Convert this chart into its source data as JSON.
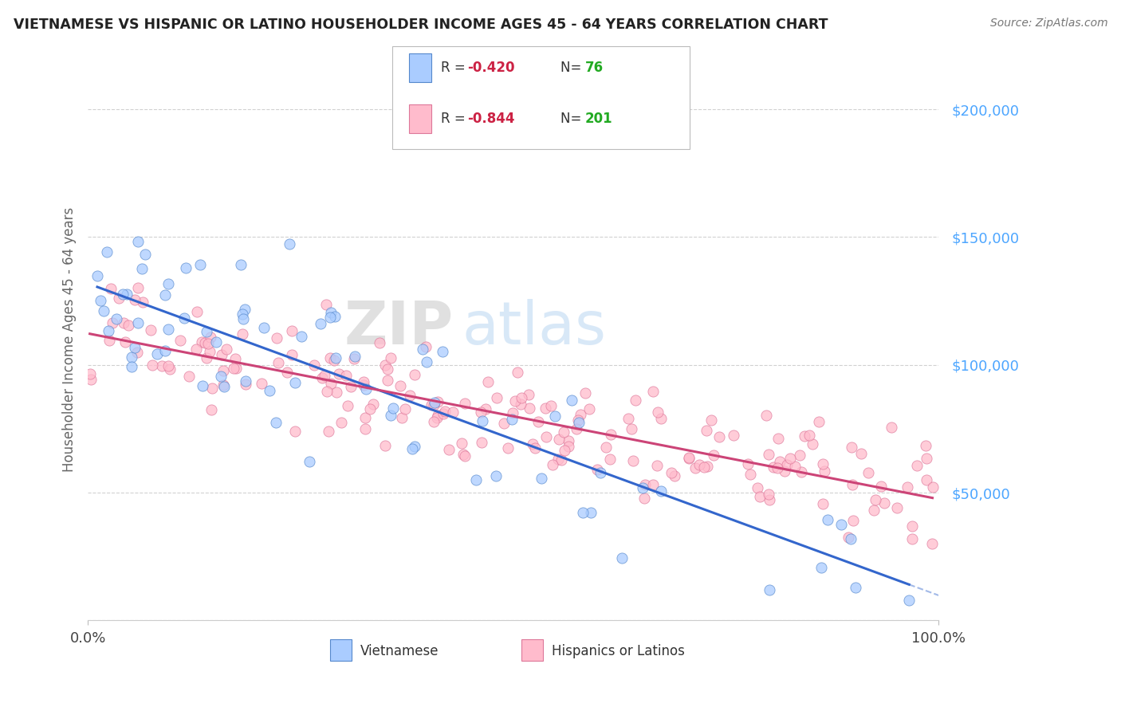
{
  "title": "VIETNAMESE VS HISPANIC OR LATINO HOUSEHOLDER INCOME AGES 45 - 64 YEARS CORRELATION CHART",
  "source": "Source: ZipAtlas.com",
  "ylabel": "Householder Income Ages 45 - 64 years",
  "watermark_zip": "ZIP",
  "watermark_atlas": "atlas",
  "background_color": "#ffffff",
  "grid_color": "#cccccc",
  "title_color": "#222222",
  "source_color": "#777777",
  "ytick_color": "#4da6ff",
  "xtick_color": "#444444",
  "ylabel_color": "#666666",
  "viet_color": "#aaccff",
  "viet_edge_color": "#5588cc",
  "viet_line_color": "#3366cc",
  "hisp_color": "#ffbbcc",
  "hisp_edge_color": "#dd7799",
  "hisp_line_color": "#cc4477",
  "legend_r_color": "#cc2244",
  "legend_n_color": "#22aa22",
  "viet_R": -0.42,
  "viet_N": 76,
  "hisp_R": -0.844,
  "hisp_N": 201,
  "xlim": [
    0,
    100
  ],
  "ylim": [
    0,
    220000
  ],
  "ytick_vals": [
    0,
    50000,
    100000,
    150000,
    200000
  ],
  "ytick_labels": [
    "",
    "$50,000",
    "$100,000",
    "$150,000",
    "$200,000"
  ],
  "xtick_vals": [
    0,
    100
  ],
  "xtick_labels": [
    "0.0%",
    "100.0%"
  ]
}
